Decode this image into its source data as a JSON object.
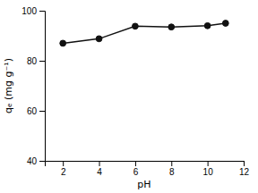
{
  "chart_data": {
    "type": "line",
    "x": [
      2,
      4,
      6,
      8,
      10,
      11
    ],
    "y": [
      87.0,
      88.8,
      93.8,
      93.5,
      94.0,
      95.0
    ],
    "xlabel": "pH",
    "ylabel": "qₑ (mg g⁻¹)",
    "xlim": [
      1,
      12
    ],
    "ylim": [
      40,
      100
    ],
    "xticks": [
      2,
      4,
      6,
      8,
      10,
      12
    ],
    "yticks": [
      40,
      60,
      80,
      100
    ],
    "color": "#111111",
    "marker": "circle"
  }
}
